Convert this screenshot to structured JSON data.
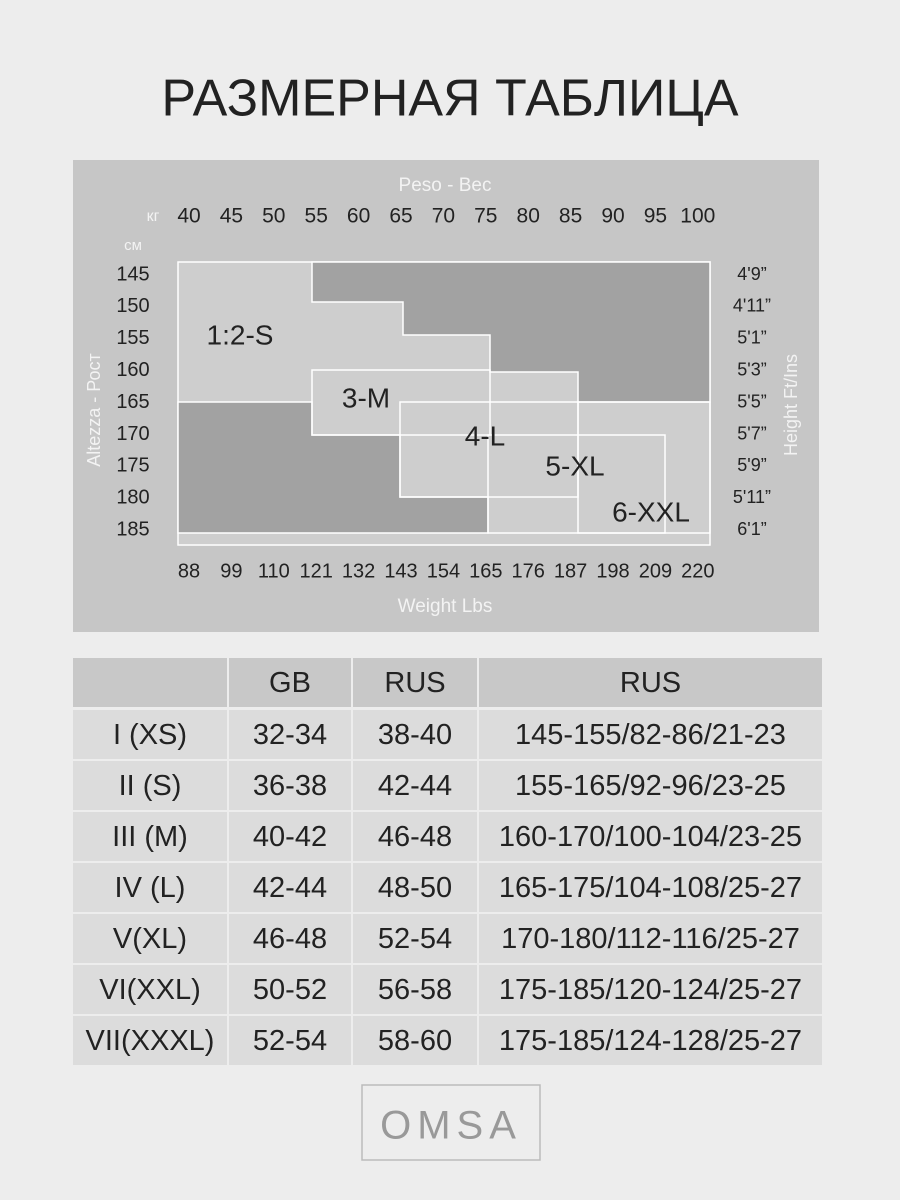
{
  "title": "РАЗМЕРНАЯ ТАБЛИЦА",
  "diagram": {
    "top_label": "Peso - Вес",
    "kg_unit": "кг",
    "kg_ticks": [
      "40",
      "45",
      "50",
      "55",
      "60",
      "65",
      "70",
      "75",
      "80",
      "85",
      "90",
      "95",
      "100"
    ],
    "cm_unit": "см",
    "cm_ticks": [
      "145",
      "150",
      "155",
      "160",
      "165",
      "170",
      "175",
      "180",
      "185"
    ],
    "left_label": "Altezza - Рост",
    "right_label": "Height Ft/Ins",
    "ft_ticks": [
      "4'9”",
      "4'11”",
      "5'1”",
      "5'3”",
      "5'5”",
      "5'7”",
      "5'9”",
      "5'11”",
      "6'1”"
    ],
    "lbs_ticks": [
      "88",
      "99",
      "110",
      "121",
      "132",
      "143",
      "154",
      "165",
      "176",
      "187",
      "198",
      "209",
      "220"
    ],
    "bottom_label": "Weight Lbs",
    "regions": [
      "1:2-S",
      "3-M",
      "4-L",
      "5-XL",
      "6-XXL"
    ]
  },
  "table": {
    "header": [
      "GB",
      "RUS",
      "RUS"
    ],
    "rows": [
      [
        "I (XS)",
        "32-34",
        "38-40",
        "145-155/82-86/21-23"
      ],
      [
        "II (S)",
        "36-38",
        "42-44",
        "155-165/92-96/23-25"
      ],
      [
        "III (M)",
        "40-42",
        "46-48",
        "160-170/100-104/23-25"
      ],
      [
        "IV (L)",
        "42-44",
        "48-50",
        "165-175/104-108/25-27"
      ],
      [
        "V(XL)",
        "46-48",
        "52-54",
        "170-180/112-116/25-27"
      ],
      [
        "VI(XXL)",
        "50-52",
        "56-58",
        "175-185/120-124/25-27"
      ],
      [
        "VII(XXXL)",
        "52-54",
        "58-60",
        "175-185/124-128/25-27"
      ]
    ]
  },
  "logo": "OMSA"
}
